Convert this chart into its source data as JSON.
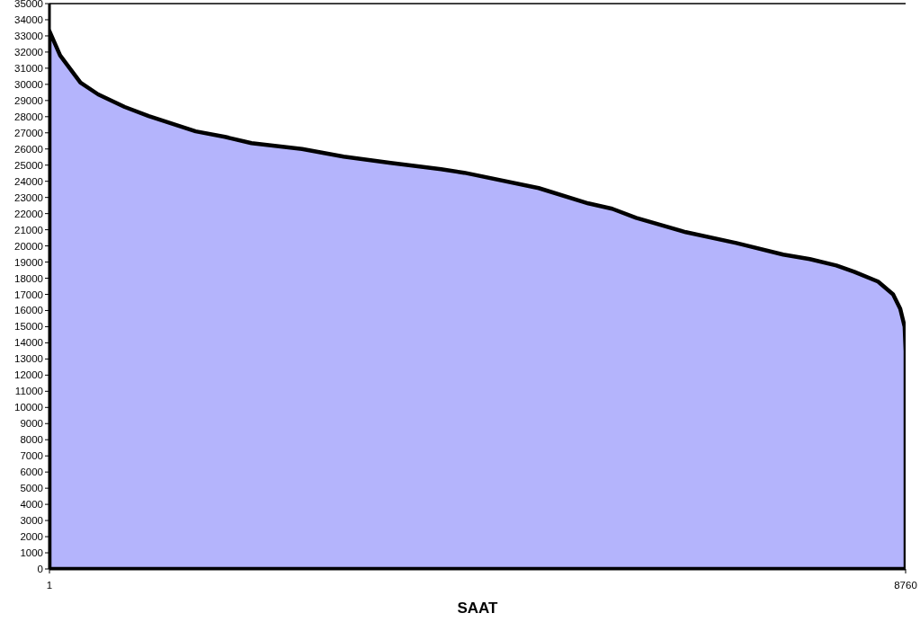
{
  "chart_data": {
    "type": "area",
    "xlabel": "SAAT",
    "x": [
      1,
      110,
      318,
      499,
      771,
      1016,
      1497,
      1796,
      2068,
      2585,
      3011,
      3492,
      4008,
      4244,
      5006,
      5514,
      5758,
      6003,
      6511,
      7028,
      7508,
      7780,
      8052,
      8234,
      8478,
      8632,
      8705,
      8750,
      8760
    ],
    "series": [
      {
        "color": "#b4b4fc",
        "values": [
          33300,
          31790,
          30110,
          29380,
          28600,
          28040,
          27090,
          26750,
          26360,
          26000,
          25530,
          25140,
          24750,
          24530,
          23580,
          22630,
          22300,
          21740,
          20850,
          20180,
          19460,
          19180,
          18790,
          18400,
          17790,
          17000,
          16110,
          15000,
          13500
        ]
      }
    ],
    "xlim": [
      1,
      8760
    ],
    "xticks": [
      1,
      8760
    ],
    "ylim": [
      0,
      35000
    ],
    "yticks": [
      0,
      1000,
      2000,
      3000,
      4000,
      5000,
      6000,
      7000,
      8000,
      9000,
      10000,
      11000,
      12000,
      13000,
      14000,
      15000,
      16000,
      17000,
      18000,
      19000,
      20000,
      21000,
      22000,
      23000,
      24000,
      25000,
      26000,
      27000,
      28000,
      29000,
      30000,
      31000,
      32000,
      33000,
      34000,
      35000
    ],
    "grid": false
  }
}
